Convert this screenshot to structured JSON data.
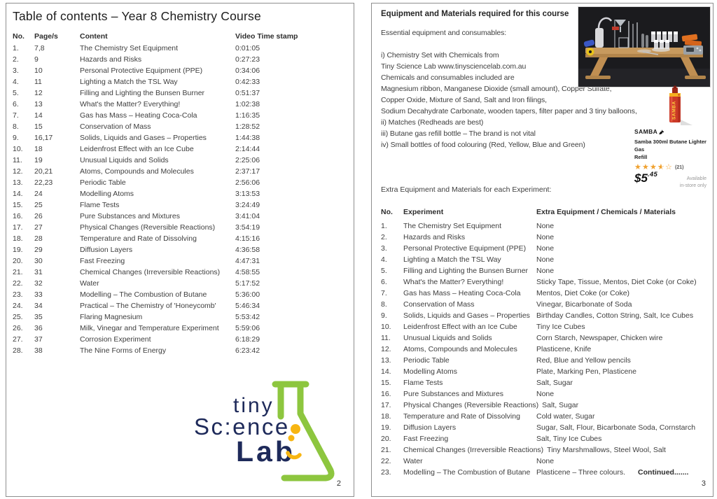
{
  "colors": {
    "page_border": "#8f8f8f",
    "body_text": "#3e3e3e",
    "logo_navy": "#1e2a5a",
    "logo_green": "#8dc63f",
    "logo_yellow": "#f7b512",
    "star_orange": "#f0a12f",
    "can_red": "#cc3a27",
    "can_yellow": "#f5b01f"
  },
  "icons": {
    "star_full": "★",
    "star_empty": "☆"
  },
  "left_page": {
    "title": "Table of contents – Year 8 Chemistry Course",
    "page_number": "2",
    "toc": {
      "headers": {
        "no": "No.",
        "pages": "Page/s",
        "content": "Content",
        "time": "Video Time stamp"
      },
      "rows": [
        [
          "1.",
          "7,8",
          "The Chemistry Set Equipment",
          "0:01:05"
        ],
        [
          "2.",
          "9",
          "Hazards and Risks",
          "0:27:23"
        ],
        [
          "3.",
          "10",
          "Personal Protective Equipment (PPE)",
          "0:34:06"
        ],
        [
          "4.",
          "11",
          "Lighting a Match the TSL Way",
          "0:42:33"
        ],
        [
          "5.",
          "12",
          "Filling and Lighting the Bunsen Burner",
          "0:51:37"
        ],
        [
          "6.",
          "13",
          "What's the Matter? Everything!",
          "1:02:38"
        ],
        [
          "7.",
          "14",
          "Gas has Mass – Heating Coca-Cola",
          "1:16:35"
        ],
        [
          "8.",
          "15",
          "Conservation of Mass",
          "1:28:52"
        ],
        [
          "9.",
          "16,17",
          "Solids, Liquids and Gases – Properties",
          "1:44:38"
        ],
        [
          "10.",
          "18",
          "Leidenfrost Effect with an Ice Cube",
          "2:14:44"
        ],
        [
          "11.",
          "19",
          "Unusual Liquids and Solids",
          "2:25:06"
        ],
        [
          "12.",
          "20,21",
          "Atoms, Compounds and Molecules",
          "2:37:17"
        ],
        [
          "13.",
          "22,23",
          "Periodic Table",
          "2:56:06"
        ],
        [
          "14.",
          "24",
          "Modelling Atoms",
          "3:13:53"
        ],
        [
          "15.",
          "25",
          "Flame Tests",
          "3:24:49"
        ],
        [
          "16.",
          "26",
          "Pure Substances and Mixtures",
          "3:41:04"
        ],
        [
          "17.",
          "27",
          "Physical Changes (Reversible Reactions)",
          "3:54:19"
        ],
        [
          "18.",
          "28",
          "Temperature and Rate of Dissolving",
          "4:15:16"
        ],
        [
          "19.",
          "29",
          "Diffusion Layers",
          "4:36:58"
        ],
        [
          "20.",
          "30",
          "Fast Freezing",
          "4:47:31"
        ],
        [
          "21.",
          "31",
          "Chemical Changes (Irreversible Reactions)",
          "4:58:55"
        ],
        [
          "22.",
          "32",
          "Water",
          "5:17:52"
        ],
        [
          "23.",
          "33",
          "Modelling – The Combustion of Butane",
          "5:36:00"
        ],
        [
          "24.",
          "34",
          "Practical – The Chemistry of 'Honeycomb'",
          "5:46:34"
        ],
        [
          "25.",
          "35",
          "Flaring Magnesium",
          "5:53:42"
        ],
        [
          "26.",
          "36",
          "Milk, Vinegar and Temperature Experiment",
          "5:59:06"
        ],
        [
          "27.",
          "37",
          "Corrosion Experiment",
          "6:18:29"
        ],
        [
          "28.",
          "38",
          "The Nine Forms of Energy",
          "6:23:42"
        ]
      ]
    },
    "logo": {
      "word_top": "tiny",
      "word_mid": "Sc:ence",
      "word_bottom": "Lab"
    }
  },
  "right_page": {
    "page_number": "3",
    "heading": "Equipment and Materials required for this course",
    "intro_lines": [
      "Essential equipment and consumables:",
      "",
      "i) Chemistry Set with Chemicals from",
      "Tiny Science Lab www.tinysciencelab.com.au",
      "Chemicals and consumables included are",
      "Magnesium ribbon, Manganese Dioxide (small amount), Copper Sulfate,",
      "Copper Oxide, Mixture of Sand, Salt and Iron filings,",
      "Sodium Decahydrate Carbonate, wooden tapers, filter paper and 3 tiny balloons,",
      "ii) Matches (Redheads are best)",
      "iii) Butane gas refill bottle –  The brand is not vital",
      "iv) Small bottles of food colouring (Red, Yellow, Blue and Green)"
    ],
    "product": {
      "can_label": "SAMBA",
      "brand": "SAMBA",
      "name_line1": "Samba 300ml Butane Lighter Gas",
      "name_line2": "Refill",
      "rating_value": 3.5,
      "rating_count": "(21)",
      "price_dollars": "$5",
      "price_cents": ".45",
      "availability_line1": "Available",
      "availability_line2": "in-store only"
    },
    "extra_heading": "Extra Equipment and Materials for each Experiment:",
    "table": {
      "headers": {
        "no": "No.",
        "experiment": "Experiment",
        "extra": "Extra Equipment / Chemicals / Materials"
      },
      "rows": [
        [
          "1.",
          "The Chemistry Set Equipment",
          "None"
        ],
        [
          "2.",
          "Hazards and Risks",
          "None"
        ],
        [
          "3.",
          "Personal Protective Equipment (PPE)",
          "None"
        ],
        [
          "4.",
          "Lighting a Match the TSL Way",
          "None"
        ],
        [
          "5.",
          "Filling and Lighting the Bunsen Burner",
          "None"
        ],
        [
          "6.",
          "What's the Matter? Everything!",
          "Sticky Tape, Tissue, Mentos, Diet Coke (or Coke)"
        ],
        [
          "7.",
          "Gas has Mass – Heating Coca-Cola",
          "Mentos, Diet Coke (or Coke)"
        ],
        [
          "8.",
          "Conservation of Mass",
          "Vinegar, Bicarbonate of Soda"
        ],
        [
          "9.",
          "Solids, Liquids and Gases – Properties",
          "Birthday Candles, Cotton String, Salt, Ice Cubes"
        ],
        [
          "10.",
          "Leidenfrost Effect with an Ice Cube",
          "Tiny Ice Cubes"
        ],
        [
          "11.",
          "Unusual Liquids and Solids",
          "Corn Starch, Newspaper, Chicken wire"
        ],
        [
          "12.",
          "Atoms, Compounds and Molecules",
          "Plasticene, Knife"
        ],
        [
          "13.",
          "Periodic Table",
          "Red, Blue and Yellow pencils"
        ],
        [
          "14.",
          "Modelling Atoms",
          "Plate, Marking Pen, Plasticene"
        ],
        [
          "15.",
          "Flame Tests",
          "Salt, Sugar"
        ],
        [
          "16.",
          "Pure Substances and Mixtures",
          "None"
        ],
        [
          "17.",
          "Physical Changes (Reversible Reactions)",
          "Salt, Sugar"
        ],
        [
          "18.",
          "Temperature and Rate of Dissolving",
          "Cold water, Sugar"
        ],
        [
          "19.",
          "Diffusion Layers",
          "Sugar, Salt, Flour, Bicarbonate Soda, Cornstarch"
        ],
        [
          "20.",
          "Fast Freezing",
          "Salt, Tiny Ice Cubes"
        ],
        [
          "21.",
          "Chemical Changes (Irreversible Reactions)",
          "Tiny Marshmallows, Steel Wool, Salt"
        ],
        [
          "22.",
          "Water",
          "None"
        ],
        [
          "23.",
          "Modelling – The Combustion of Butane",
          "Plasticene – Three colours.",
          "Continued......."
        ]
      ]
    }
  }
}
